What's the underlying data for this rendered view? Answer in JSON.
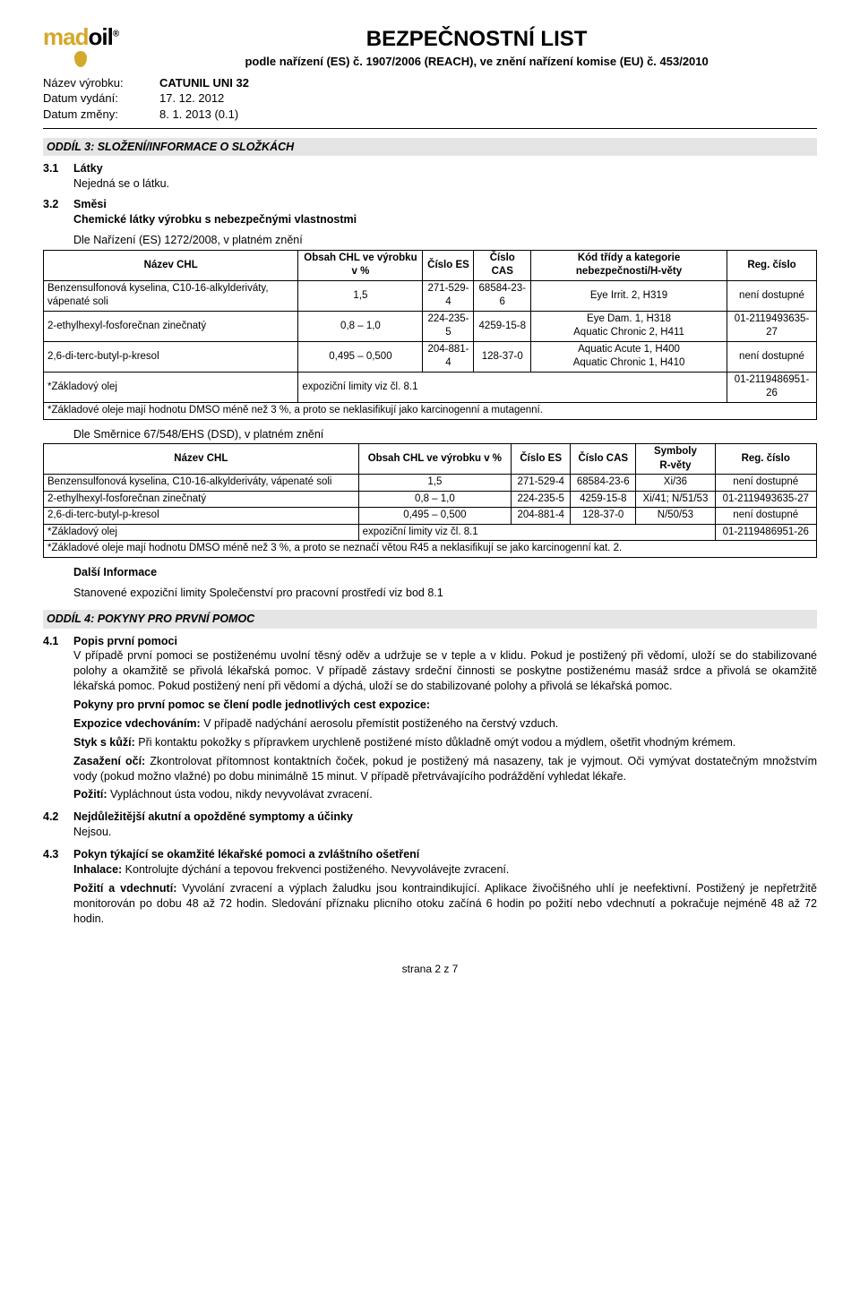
{
  "header": {
    "logo": {
      "left": "mad",
      "right": "oil",
      "reg": "®"
    },
    "title": "BEZPEČNOSTNÍ LIST",
    "subtitle": "podle nařízení (ES) č. 1907/2006 (REACH), ve znění nařízení komise (EU) č. 453/2010"
  },
  "meta": {
    "product_label": "Název výrobku:",
    "product": "CATUNIL UNI 32",
    "issue_label": "Datum vydání:",
    "issue": "17. 12. 2012",
    "change_label": "Datum změny:",
    "change": "8. 1. 2013 (0.1)"
  },
  "section3": {
    "bar": "ODDÍL 3: SLOŽENÍ/INFORMACE O SLOŽKÁCH",
    "s31_num": "3.1",
    "s31_title": "Látky",
    "s31_body": "Nejedná se o látku.",
    "s32_num": "3.2",
    "s32_title": "Směsi",
    "s32_sub": "Chemické látky výrobku s nebezpečnými vlastnostmi",
    "table1_title": "Dle Nařízení (ES) 1272/2008, v platném znění",
    "table1": {
      "columns": [
        "Název CHL",
        "Obsah CHL ve výrobku v %",
        "Číslo ES",
        "Číslo CAS",
        "Kód třídy a kategorie nebezpečnosti/H-věty",
        "Reg. číslo"
      ],
      "rows": [
        [
          "Benzensulfonová kyselina, C10-16-alkylderiváty, vápenaté soli",
          "1,5",
          "271-529-4",
          "68584-23-6",
          "Eye Irrit. 2, H319",
          "není dostupné"
        ],
        [
          "2-ethylhexyl-fosforečnan zinečnatý",
          "0,8 – 1,0",
          "224-235-5",
          "4259-15-8",
          "Eye Dam. 1, H318\nAquatic Chronic 2, H411",
          "01-2119493635-27"
        ],
        [
          "2,6-di-terc-butyl-p-kresol",
          "0,495 – 0,500",
          "204-881-4",
          "128-37-0",
          "Aquatic Acute 1, H400\nAquatic Chronic 1, H410",
          "není dostupné"
        ]
      ],
      "footer1_left": "*Základový olej",
      "footer1_mid": "expoziční limity viz čl. 8.1",
      "footer1_right": "01-2119486951-26",
      "footer2": "*Základové oleje mají hodnotu DMSO méně než 3 %, a proto se neklasifikují jako karcinogenní a mutagenní."
    },
    "table2_title": "Dle Směrnice 67/548/EHS (DSD), v platném znění",
    "table2": {
      "columns": [
        "Název CHL",
        "Obsah CHL ve výrobku v %",
        "Číslo ES",
        "Číslo CAS",
        "Symboly\nR-věty",
        "Reg. číslo"
      ],
      "rows": [
        [
          "Benzensulfonová kyselina, C10-16-alkylderiváty, vápenaté soli",
          "1,5",
          "271-529-4",
          "68584-23-6",
          "Xi/36",
          "není dostupné"
        ],
        [
          "2-ethylhexyl-fosforečnan zinečnatý",
          "0,8 – 1,0",
          "224-235-5",
          "4259-15-8",
          "Xi/41; N/51/53",
          "01-2119493635-27"
        ],
        [
          "2,6-di-terc-butyl-p-kresol",
          "0,495 – 0,500",
          "204-881-4",
          "128-37-0",
          "N/50/53",
          "není dostupné"
        ]
      ],
      "footer1_left": "*Základový olej",
      "footer1_mid": "expoziční limity viz čl. 8.1",
      "footer1_right": "01-2119486951-26",
      "footer2": "*Základové oleje mají hodnotu DMSO méně než 3 %, a proto se neznačí větou R45 a neklasifikují se jako karcinogenní kat. 2."
    },
    "more_info_title": "Další Informace",
    "more_info_body": "Stanovené expoziční limity Společenství pro pracovní prostředí viz bod 8.1"
  },
  "section4": {
    "bar": "ODDÍL 4: POKYNY PRO PRVNÍ POMOC",
    "s41_num": "4.1",
    "s41_title": "Popis první pomoci",
    "s41_p1": "V případě první pomoci se postiženému uvolní těsný oděv a udržuje se v teple a v klidu. Pokud je postižený při vědomí, uloží se do stabilizované polohy a okamžitě se přivolá lékařská pomoc. V případě zástavy srdeční činnosti se poskytne postiženému masáž srdce a přivolá se okamžitě lékařská pomoc. Pokud postižený není při vědomí a dýchá, uloží se do stabilizované polohy a přivolá se lékařská pomoc.",
    "s41_routes": "Pokyny pro první pomoc se člení podle jednotlivých cest expozice:",
    "inhale_lead": "Expozice vdechováním:",
    "inhale_body": " V případě nadýchání aerosolu přemístit postiženého na čerstvý vzduch.",
    "skin_lead": "Styk s kůží:",
    "skin_body": " Při kontaktu pokožky s přípravkem urychleně postižené místo důkladně omýt vodou a mýdlem, ošetřit vhodným krémem.",
    "eye_lead": "Zasažení očí:",
    "eye_body": " Zkontrolovat přítomnost kontaktních čoček, pokud je postižený má nasazeny, tak je vyjmout. Oči vymývat dostatečným množstvím vody (pokud možno vlažné) po dobu minimálně 15 minut. V případě přetrvávajícího podráždění vyhledat lékaře.",
    "ingest_lead": "Požití:",
    "ingest_body": " Vypláchnout ústa vodou, nikdy nevyvolávat zvracení.",
    "s42_num": "4.2",
    "s42_title": "Nejdůležitější akutní a opožděné symptomy a účinky",
    "s42_body": "Nejsou.",
    "s43_num": "4.3",
    "s43_title": "Pokyn týkající se okamžité lékařské pomoci a zvláštního ošetření",
    "inh2_lead": "Inhalace:",
    "inh2_body": " Kontrolujte dýchání a tepovou frekvenci postiženého. Nevyvolávejte zvracení.",
    "ing2_lead": "Požití a vdechnutí:",
    "ing2_body": " Vyvolání zvracení a výplach žaludku jsou kontraindikující. Aplikace živočišného uhlí je neefektivní. Postižený je nepřetržitě monitorován po dobu 48 až 72 hodin. Sledování příznaku plicního otoku začíná 6 hodin po požití nebo vdechnutí a pokračuje nejméně 48 až 72 hodin."
  },
  "footer": {
    "page": "strana 2 z 7"
  }
}
